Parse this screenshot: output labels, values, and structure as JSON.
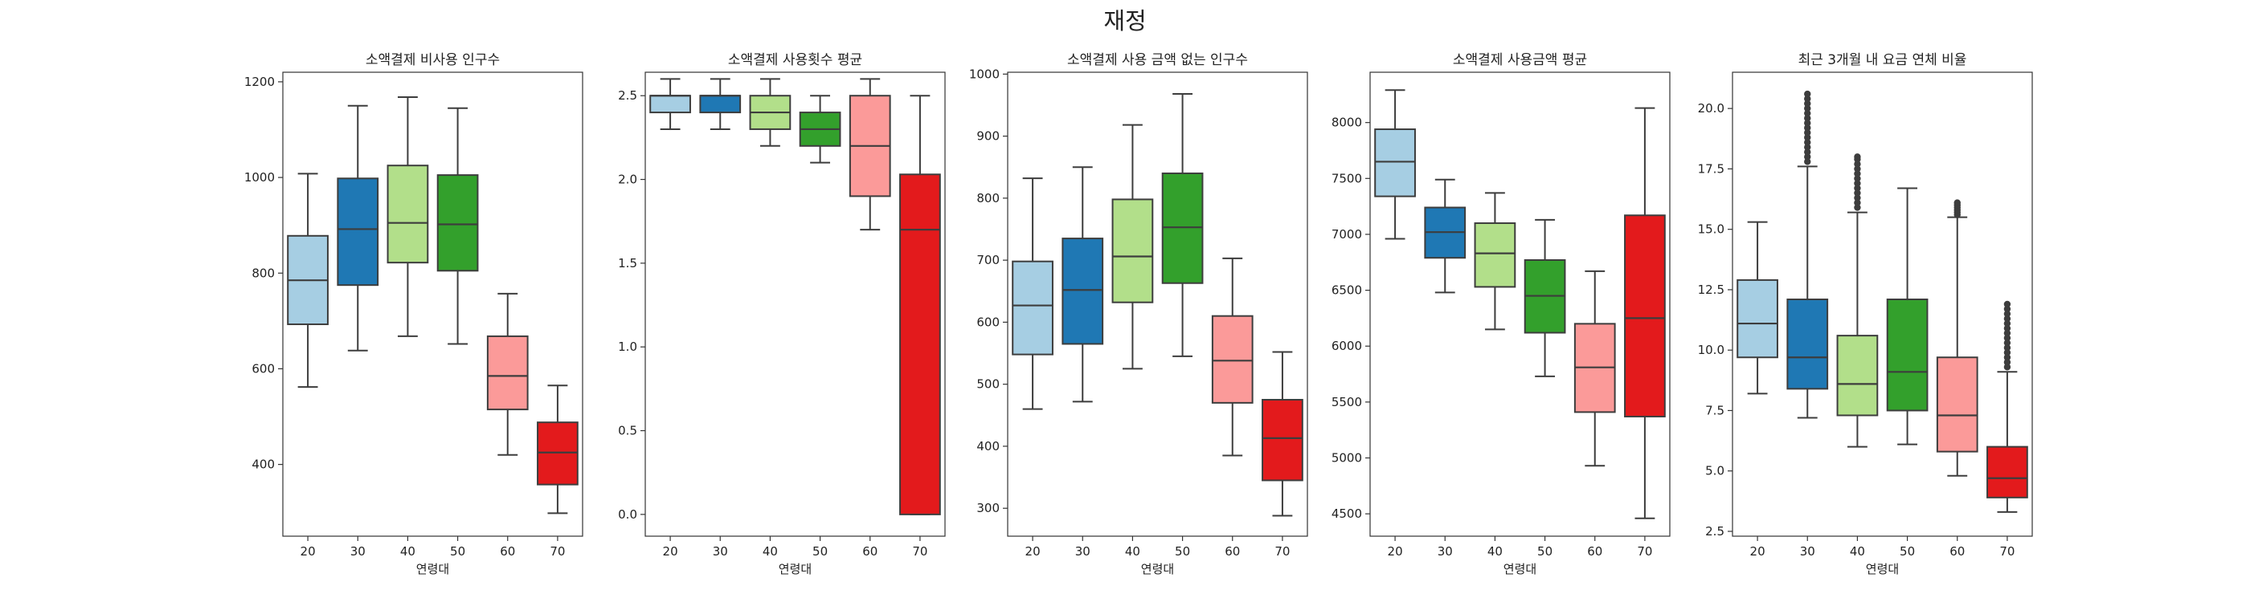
{
  "suptitle": "재정",
  "colors": [
    "#a6cee3",
    "#1f78b4",
    "#b2df8a",
    "#33a02c",
    "#fb9a99",
    "#e31a1c"
  ],
  "chart_data": [
    {
      "type": "box",
      "title": "소액결제 비사용 인구수",
      "xlabel": "연령대",
      "ylabel": "",
      "categories": [
        "20",
        "30",
        "40",
        "50",
        "60",
        "70"
      ],
      "ylim": [
        250,
        1220
      ],
      "yticks": [
        400,
        600,
        800,
        1000,
        1200
      ],
      "boxes": [
        {
          "min": 562,
          "q1": 693,
          "median": 785,
          "q3": 878,
          "max": 1008,
          "outliers": []
        },
        {
          "min": 638,
          "q1": 775,
          "median": 892,
          "q3": 998,
          "max": 1150,
          "outliers": []
        },
        {
          "min": 668,
          "q1": 822,
          "median": 905,
          "q3": 1025,
          "max": 1168,
          "outliers": []
        },
        {
          "min": 652,
          "q1": 805,
          "median": 902,
          "q3": 1005,
          "max": 1145,
          "outliers": []
        },
        {
          "min": 420,
          "q1": 515,
          "median": 585,
          "q3": 668,
          "max": 757,
          "outliers": []
        },
        {
          "min": 298,
          "q1": 358,
          "median": 425,
          "q3": 488,
          "max": 565,
          "outliers": []
        }
      ]
    },
    {
      "type": "box",
      "title": "소액결제 사용횟수 평균",
      "xlabel": "연령대",
      "ylabel": "",
      "categories": [
        "20",
        "30",
        "40",
        "50",
        "60",
        "70"
      ],
      "ylim": [
        -0.13,
        2.64
      ],
      "yticks": [
        0.0,
        0.5,
        1.0,
        1.5,
        2.0,
        2.5
      ],
      "tickDecimals": 1,
      "boxes": [
        {
          "min": 2.3,
          "q1": 2.4,
          "median": 2.5,
          "q3": 2.5,
          "max": 2.6,
          "outliers": []
        },
        {
          "min": 2.3,
          "q1": 2.4,
          "median": 2.5,
          "q3": 2.5,
          "max": 2.6,
          "outliers": []
        },
        {
          "min": 2.2,
          "q1": 2.3,
          "median": 2.4,
          "q3": 2.5,
          "max": 2.6,
          "outliers": []
        },
        {
          "min": 2.1,
          "q1": 2.2,
          "median": 2.3,
          "q3": 2.4,
          "max": 2.5,
          "outliers": []
        },
        {
          "min": 1.7,
          "q1": 1.9,
          "median": 2.2,
          "q3": 2.5,
          "max": 2.6,
          "outliers": []
        },
        {
          "min": 0.0,
          "q1": 0.0,
          "median": 1.7,
          "q3": 2.03,
          "max": 2.5,
          "outliers": []
        }
      ]
    },
    {
      "type": "box",
      "title": "소액결제 사용 금액 없는 인구수",
      "xlabel": "연령대",
      "ylabel": "",
      "categories": [
        "20",
        "30",
        "40",
        "50",
        "60",
        "70"
      ],
      "ylim": [
        255,
        1003
      ],
      "yticks": [
        300,
        400,
        500,
        600,
        700,
        800,
        900,
        1000
      ],
      "boxes": [
        {
          "min": 460,
          "q1": 548,
          "median": 627,
          "q3": 698,
          "max": 832,
          "outliers": []
        },
        {
          "min": 472,
          "q1": 565,
          "median": 652,
          "q3": 735,
          "max": 850,
          "outliers": []
        },
        {
          "min": 525,
          "q1": 632,
          "median": 706,
          "q3": 798,
          "max": 918,
          "outliers": []
        },
        {
          "min": 545,
          "q1": 663,
          "median": 753,
          "q3": 840,
          "max": 968,
          "outliers": []
        },
        {
          "min": 385,
          "q1": 470,
          "median": 538,
          "q3": 610,
          "max": 703,
          "outliers": []
        },
        {
          "min": 288,
          "q1": 345,
          "median": 413,
          "q3": 475,
          "max": 552,
          "outliers": []
        }
      ]
    },
    {
      "type": "box",
      "title": "소액결제 사용금액 평균",
      "xlabel": "연령대",
      "ylabel": "",
      "categories": [
        "20",
        "30",
        "40",
        "50",
        "60",
        "70"
      ],
      "ylim": [
        4300,
        8450
      ],
      "yticks": [
        4500,
        5000,
        5500,
        6000,
        6500,
        7000,
        7500,
        8000
      ],
      "boxes": [
        {
          "min": 6960,
          "q1": 7340,
          "median": 7650,
          "q3": 7940,
          "max": 8290,
          "outliers": []
        },
        {
          "min": 6480,
          "q1": 6790,
          "median": 7020,
          "q3": 7240,
          "max": 7490,
          "outliers": []
        },
        {
          "min": 6150,
          "q1": 6530,
          "median": 6830,
          "q3": 7100,
          "max": 7370,
          "outliers": []
        },
        {
          "min": 5730,
          "q1": 6120,
          "median": 6450,
          "q3": 6770,
          "max": 7130,
          "outliers": []
        },
        {
          "min": 4930,
          "q1": 5410,
          "median": 5810,
          "q3": 6200,
          "max": 6670,
          "outliers": []
        },
        {
          "min": 4460,
          "q1": 5370,
          "median": 6250,
          "q3": 7170,
          "max": 8130,
          "outliers": []
        }
      ]
    },
    {
      "type": "box",
      "title": "최근 3개월 내 요금 연체 비율",
      "xlabel": "연령대",
      "ylabel": "",
      "categories": [
        "20",
        "30",
        "40",
        "50",
        "60",
        "70"
      ],
      "ylim": [
        2.3,
        21.5
      ],
      "yticks": [
        2.5,
        5.0,
        7.5,
        10.0,
        12.5,
        15.0,
        17.5,
        20.0
      ],
      "tickDecimals": 1,
      "boxes": [
        {
          "min": 8.2,
          "q1": 9.7,
          "median": 11.1,
          "q3": 12.9,
          "max": 15.3,
          "outliers": []
        },
        {
          "min": 7.2,
          "q1": 8.4,
          "median": 9.7,
          "q3": 12.1,
          "max": 17.6,
          "outliers": [
            17.8,
            18.0,
            18.2,
            18.4,
            18.6,
            18.8,
            19.0,
            19.2,
            19.4,
            19.6,
            19.8,
            20.0,
            20.2,
            20.4,
            20.6
          ]
        },
        {
          "min": 6.0,
          "q1": 7.3,
          "median": 8.6,
          "q3": 10.6,
          "max": 15.7,
          "outliers": [
            15.9,
            16.1,
            16.3,
            16.5,
            16.7,
            16.9,
            17.1,
            17.3,
            17.5,
            17.7,
            17.9,
            18.0
          ]
        },
        {
          "min": 6.1,
          "q1": 7.5,
          "median": 9.1,
          "q3": 12.1,
          "max": 16.7,
          "outliers": []
        },
        {
          "min": 4.8,
          "q1": 5.8,
          "median": 7.3,
          "q3": 9.7,
          "max": 15.5,
          "outliers": [
            15.6,
            15.7,
            15.8,
            15.9,
            16.0,
            16.1
          ]
        },
        {
          "min": 3.3,
          "q1": 3.9,
          "median": 4.7,
          "q3": 6.0,
          "max": 9.1,
          "outliers": [
            9.3,
            9.5,
            9.7,
            9.9,
            10.1,
            10.3,
            10.5,
            10.7,
            10.9,
            11.1,
            11.3,
            11.5,
            11.7,
            11.9
          ]
        }
      ]
    }
  ]
}
